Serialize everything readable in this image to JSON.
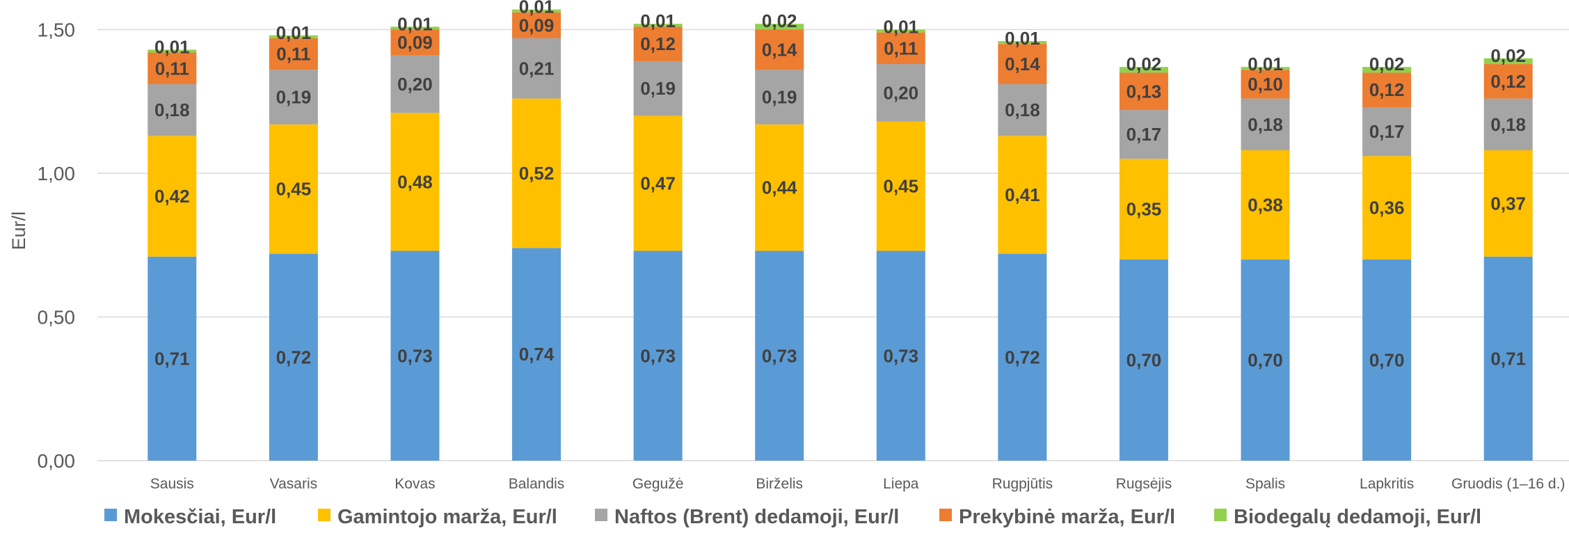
{
  "chart_data": {
    "type": "bar",
    "stacked": true,
    "title": "",
    "xlabel": "",
    "ylabel": "Eur/l",
    "ylim": [
      0,
      1.6
    ],
    "yticks": [
      "0,00",
      "0,50",
      "1,00",
      "1,50"
    ],
    "ytick_values": [
      0,
      0.5,
      1.0,
      1.5
    ],
    "grid": true,
    "legend_position": "bottom",
    "categories": [
      "Sausis",
      "Vasaris",
      "Kovas",
      "Balandis",
      "Gegužė",
      "Birželis",
      "Liepa",
      "Rugpjūtis",
      "Rugsėjis",
      "Spalis",
      "Lapkritis",
      "Gruodis (1–16 d.)"
    ],
    "series": [
      {
        "name": "Mokesčiai, Eur/l",
        "color": "#5b9bd5",
        "values": [
          0.71,
          0.72,
          0.73,
          0.74,
          0.73,
          0.73,
          0.73,
          0.72,
          0.7,
          0.7,
          0.7,
          0.71
        ],
        "labels": [
          "0,71",
          "0,72",
          "0,73",
          "0,74",
          "0,73",
          "0,73",
          "0,73",
          "0,72",
          "0,70",
          "0,70",
          "0,70",
          "0,71"
        ]
      },
      {
        "name": "Gamintojo marža, Eur/l",
        "color": "#ffc000",
        "values": [
          0.42,
          0.45,
          0.48,
          0.52,
          0.47,
          0.44,
          0.45,
          0.41,
          0.35,
          0.38,
          0.36,
          0.37
        ],
        "labels": [
          "0,42",
          "0,45",
          "0,48",
          "0,52",
          "0,47",
          "0,44",
          "0,45",
          "0,41",
          "0,35",
          "0,38",
          "0,36",
          "0,37"
        ]
      },
      {
        "name": "Naftos (Brent) dedamoji, Eur/l",
        "color": "#a5a5a5",
        "values": [
          0.18,
          0.19,
          0.2,
          0.21,
          0.19,
          0.19,
          0.2,
          0.18,
          0.17,
          0.18,
          0.17,
          0.18
        ],
        "labels": [
          "0,18",
          "0,19",
          "0,20",
          "0,21",
          "0,19",
          "0,19",
          "0,20",
          "0,18",
          "0,17",
          "0,18",
          "0,17",
          "0,18"
        ]
      },
      {
        "name": "Prekybinė marža, Eur/l",
        "color": "#ed7d31",
        "values": [
          0.11,
          0.11,
          0.09,
          0.09,
          0.12,
          0.14,
          0.11,
          0.14,
          0.13,
          0.1,
          0.12,
          0.12
        ],
        "labels": [
          "0,11",
          "0,11",
          "0,09",
          "0,09",
          "0,12",
          "0,14",
          "0,11",
          "0,14",
          "0,13",
          "0,10",
          "0,12",
          "0,12"
        ]
      },
      {
        "name": "Biodegalų dedamoji, Eur/l",
        "color": "#92d050",
        "values": [
          0.01,
          0.01,
          0.01,
          0.01,
          0.01,
          0.02,
          0.01,
          0.01,
          0.02,
          0.01,
          0.02,
          0.02
        ],
        "labels": [
          "0,01",
          "0,01",
          "0,01",
          "0,01",
          "0,01",
          "0,02",
          "0,01",
          "0,01",
          "0,02",
          "0,01",
          "0,02",
          "0,02"
        ]
      }
    ]
  }
}
